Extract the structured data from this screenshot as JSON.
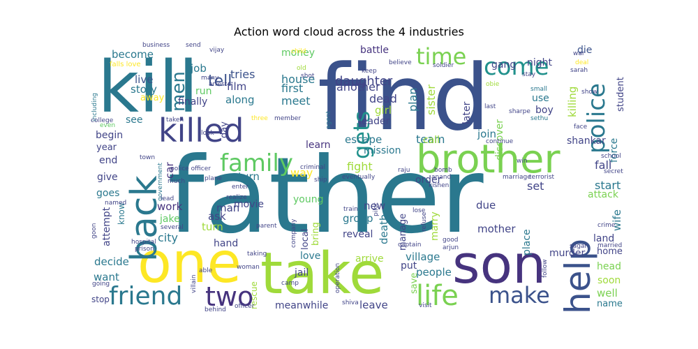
{
  "chart_data": {
    "type": "wordcloud",
    "title": "Action word cloud across the 4 industries",
    "words": [
      {
        "text": "father",
        "color": "#2a788e"
      },
      {
        "text": "find",
        "color": "#3b528b"
      },
      {
        "text": "kill",
        "color": "#2a788e"
      },
      {
        "text": "take",
        "color": "#9fda3a"
      },
      {
        "text": "one",
        "color": "#fde725"
      },
      {
        "text": "son",
        "color": "#46337e"
      },
      {
        "text": "brother",
        "color": "#7ad151"
      },
      {
        "text": "back",
        "color": "#2a788e"
      },
      {
        "text": "killed",
        "color": "#414487"
      },
      {
        "text": "help",
        "color": "#3b528b"
      },
      {
        "text": "police",
        "color": "#2a788e"
      },
      {
        "text": "family",
        "color": "#5ec962"
      },
      {
        "text": "friend",
        "color": "#2a788e"
      },
      {
        "text": "two",
        "color": "#46337e"
      },
      {
        "text": "life",
        "color": "#7ad151"
      },
      {
        "text": "make",
        "color": "#3b528b"
      },
      {
        "text": "come",
        "color": "#21918c"
      },
      {
        "text": "time",
        "color": "#7ad151"
      },
      {
        "text": "gets",
        "color": "#21918c"
      },
      {
        "text": "men",
        "color": "#2a788e"
      },
      {
        "text": "tell",
        "color": "#3b528b"
      },
      {
        "text": "tries",
        "color": "#3b528b"
      },
      {
        "text": "film",
        "color": "#414487"
      },
      {
        "text": "along",
        "color": "#2a788e"
      },
      {
        "text": "house",
        "color": "#2a788e"
      },
      {
        "text": "money",
        "color": "#5ec962"
      },
      {
        "text": "daughter",
        "color": "#414487"
      },
      {
        "text": "battle",
        "color": "#46337e"
      },
      {
        "text": "first",
        "color": "#2a788e"
      },
      {
        "text": "meet",
        "color": "#2a788e"
      },
      {
        "text": "another",
        "color": "#414487"
      },
      {
        "text": "dead",
        "color": "#414487"
      },
      {
        "text": "plan",
        "color": "#2a788e"
      },
      {
        "text": "sister",
        "color": "#9fda3a"
      },
      {
        "text": "gang",
        "color": "#414487"
      },
      {
        "text": "night",
        "color": "#414487"
      },
      {
        "text": "die",
        "color": "#3b528b"
      },
      {
        "text": "become",
        "color": "#2a788e"
      },
      {
        "text": "live",
        "color": "#3b528b"
      },
      {
        "text": "story",
        "color": "#2a788e"
      },
      {
        "text": "job",
        "color": "#2a788e"
      },
      {
        "text": "run",
        "color": "#5ec962"
      },
      {
        "text": "finally",
        "color": "#414487"
      },
      {
        "text": "away",
        "color": "#fde725"
      },
      {
        "text": "learn",
        "color": "#46337e"
      },
      {
        "text": "escape",
        "color": "#2a788e"
      },
      {
        "text": "mission",
        "color": "#2a788e"
      },
      {
        "text": "girl",
        "color": "#9fda3a"
      },
      {
        "text": "leader",
        "color": "#414487"
      },
      {
        "text": "team",
        "color": "#2a788e"
      },
      {
        "text": "later",
        "color": "#414487"
      },
      {
        "text": "discover",
        "color": "#7ad151"
      },
      {
        "text": "use",
        "color": "#2a788e"
      },
      {
        "text": "boy",
        "color": "#414487"
      },
      {
        "text": "killing",
        "color": "#9fda3a"
      },
      {
        "text": "student",
        "color": "#414487"
      },
      {
        "text": "force",
        "color": "#2a788e"
      },
      {
        "text": "shankar",
        "color": "#414487"
      },
      {
        "text": "join",
        "color": "#2a788e"
      },
      {
        "text": "call",
        "color": "#9fda3a"
      },
      {
        "text": "fight",
        "color": "#9fda3a"
      },
      {
        "text": "way",
        "color": "#fde725"
      },
      {
        "text": "return",
        "color": "#2a788e"
      },
      {
        "text": "car",
        "color": "#46337e"
      },
      {
        "text": "order",
        "color": "#414487"
      },
      {
        "text": "set",
        "color": "#414487"
      },
      {
        "text": "start",
        "color": "#2a788e"
      },
      {
        "text": "attack",
        "color": "#7ad151"
      },
      {
        "text": "fall",
        "color": "#414487"
      },
      {
        "text": "wife",
        "color": "#2a788e"
      },
      {
        "text": "begin",
        "color": "#414487"
      },
      {
        "text": "end",
        "color": "#414487"
      },
      {
        "text": "give",
        "color": "#414487"
      },
      {
        "text": "goes",
        "color": "#2a788e"
      },
      {
        "text": "attempt",
        "color": "#414487"
      },
      {
        "text": "know",
        "color": "#2a788e"
      },
      {
        "text": "work",
        "color": "#46337e"
      },
      {
        "text": "jake",
        "color": "#5ec962"
      },
      {
        "text": "city",
        "color": "#2a788e"
      },
      {
        "text": "man",
        "color": "#414487"
      },
      {
        "text": "ask",
        "color": "#414487"
      },
      {
        "text": "movie",
        "color": "#414487"
      },
      {
        "text": "turn",
        "color": "#9fda3a"
      },
      {
        "text": "hand",
        "color": "#414487"
      },
      {
        "text": "young",
        "color": "#5ec962"
      },
      {
        "text": "group",
        "color": "#2a788e"
      },
      {
        "text": "reveal",
        "color": "#414487"
      },
      {
        "text": "bring",
        "color": "#9fda3a"
      },
      {
        "text": "local",
        "color": "#414487"
      },
      {
        "text": "death",
        "color": "#2a788e"
      },
      {
        "text": "manage",
        "color": "#414487"
      },
      {
        "text": "marry",
        "color": "#9fda3a"
      },
      {
        "text": "due",
        "color": "#414487"
      },
      {
        "text": "mother",
        "color": "#414487"
      },
      {
        "text": "place",
        "color": "#2a788e"
      },
      {
        "text": "murder",
        "color": "#414487"
      },
      {
        "text": "land",
        "color": "#414487"
      },
      {
        "text": "home",
        "color": "#414487"
      },
      {
        "text": "decide",
        "color": "#2a788e"
      },
      {
        "text": "want",
        "color": "#2a788e"
      },
      {
        "text": "love",
        "color": "#2a788e"
      },
      {
        "text": "arrive",
        "color": "#9fda3a"
      },
      {
        "text": "village",
        "color": "#2a788e"
      },
      {
        "text": "people",
        "color": "#2a788e"
      },
      {
        "text": "head",
        "color": "#7ad151"
      },
      {
        "text": "soon",
        "color": "#9fda3a"
      },
      {
        "text": "well",
        "color": "#7ad151"
      },
      {
        "text": "name",
        "color": "#2a788e"
      },
      {
        "text": "jail",
        "color": "#414487"
      },
      {
        "text": "rescue",
        "color": "#9fda3a"
      },
      {
        "text": "put",
        "color": "#414487"
      },
      {
        "text": "save",
        "color": "#7ad151"
      },
      {
        "text": "meanwhile",
        "color": "#414487"
      },
      {
        "text": "leave",
        "color": "#414487"
      },
      {
        "text": "stop",
        "color": "#414487"
      },
      {
        "text": "new",
        "color": "#414487"
      },
      {
        "text": "see",
        "color": "#2a788e"
      },
      {
        "text": "year",
        "color": "#414487"
      },
      {
        "text": "day",
        "color": "#414487"
      },
      {
        "text": "business",
        "color": "#414487"
      },
      {
        "text": "send",
        "color": "#414487"
      },
      {
        "text": "falls love",
        "color": "#fde725"
      },
      {
        "text": "vijay",
        "color": "#414487"
      },
      {
        "text": "arrest",
        "color": "#414487"
      },
      {
        "text": "many",
        "color": "#414487"
      },
      {
        "text": "child",
        "color": "#fde725"
      },
      {
        "text": "old",
        "color": "#9fda3a"
      },
      {
        "text": "shot",
        "color": "#414487"
      },
      {
        "text": "keep",
        "color": "#414487"
      },
      {
        "text": "believe",
        "color": "#414487"
      },
      {
        "text": "soldier",
        "color": "#414487"
      },
      {
        "text": "war",
        "color": "#414487"
      },
      {
        "text": "deal",
        "color": "#fde725"
      },
      {
        "text": "stay",
        "color": "#414487"
      },
      {
        "text": "sarah",
        "color": "#414487"
      },
      {
        "text": "show",
        "color": "#414487"
      },
      {
        "text": "small",
        "color": "#2a788e"
      },
      {
        "text": "obie",
        "color": "#9fda3a"
      },
      {
        "text": "last",
        "color": "#414487"
      },
      {
        "text": "sharpe",
        "color": "#414487"
      },
      {
        "text": "sethu",
        "color": "#2a788e"
      },
      {
        "text": "face",
        "color": "#414487"
      },
      {
        "text": "including",
        "color": "#2a788e"
      },
      {
        "text": "college",
        "color": "#414487"
      },
      {
        "text": "even",
        "color": "#5ec962"
      },
      {
        "text": "taken",
        "color": "#414487"
      },
      {
        "text": "three",
        "color": "#fde725"
      },
      {
        "text": "member",
        "color": "#414487"
      },
      {
        "text": "agent",
        "color": "#2a788e"
      },
      {
        "text": "look",
        "color": "#414487"
      },
      {
        "text": "criminal",
        "color": "#414487"
      },
      {
        "text": "continue",
        "color": "#414487"
      },
      {
        "text": "town",
        "color": "#414487"
      },
      {
        "text": "police officer",
        "color": "#414487"
      },
      {
        "text": "school",
        "color": "#414487"
      },
      {
        "text": "secret",
        "color": "#414487"
      },
      {
        "text": "win",
        "color": "#414487"
      },
      {
        "text": "bomb",
        "color": "#414487"
      },
      {
        "text": "marriage",
        "color": "#414487"
      },
      {
        "text": "terrorist",
        "color": "#414487"
      },
      {
        "text": "raju",
        "color": "#414487"
      },
      {
        "text": "anand",
        "color": "#414487"
      },
      {
        "text": "kishen",
        "color": "#414487"
      },
      {
        "text": "eventually",
        "color": "#414487"
      },
      {
        "text": "ship",
        "color": "#414487"
      },
      {
        "text": "enter",
        "color": "#414487"
      },
      {
        "text": "much",
        "color": "#414487"
      },
      {
        "text": "government",
        "color": "#2a788e"
      },
      {
        "text": "plane",
        "color": "#414487"
      },
      {
        "text": "realize",
        "color": "#414487"
      },
      {
        "text": "lead",
        "color": "#414487"
      },
      {
        "text": "named",
        "color": "#414487"
      },
      {
        "text": "train",
        "color": "#414487"
      },
      {
        "text": "pilot",
        "color": "#414487"
      },
      {
        "text": "lose",
        "color": "#414487"
      },
      {
        "text": "refuse",
        "color": "#414487"
      },
      {
        "text": "crime",
        "color": "#414487"
      },
      {
        "text": "married",
        "color": "#414487"
      },
      {
        "text": "sagar",
        "color": "#414487"
      },
      {
        "text": "good",
        "color": "#414487"
      },
      {
        "text": "arjun",
        "color": "#414487"
      },
      {
        "text": "captain",
        "color": "#414487"
      },
      {
        "text": "parent",
        "color": "#414487"
      },
      {
        "text": "company",
        "color": "#414487"
      },
      {
        "text": "several",
        "color": "#414487"
      },
      {
        "text": "hospital",
        "color": "#414487"
      },
      {
        "text": "prison",
        "color": "#414487"
      },
      {
        "text": "goon",
        "color": "#414487"
      },
      {
        "text": "taking",
        "color": "#414487"
      },
      {
        "text": "woman",
        "color": "#414487"
      },
      {
        "text": "able",
        "color": "#414487"
      },
      {
        "text": "villain",
        "color": "#414487"
      },
      {
        "text": "camp",
        "color": "#414487"
      },
      {
        "text": "operation",
        "color": "#414487"
      },
      {
        "text": "going",
        "color": "#414487"
      },
      {
        "text": "follow",
        "color": "#414487"
      },
      {
        "text": "behind",
        "color": "#414487"
      },
      {
        "text": "officer",
        "color": "#414487"
      },
      {
        "text": "shiva",
        "color": "#414487"
      },
      {
        "text": "visit",
        "color": "#414487"
      }
    ]
  }
}
